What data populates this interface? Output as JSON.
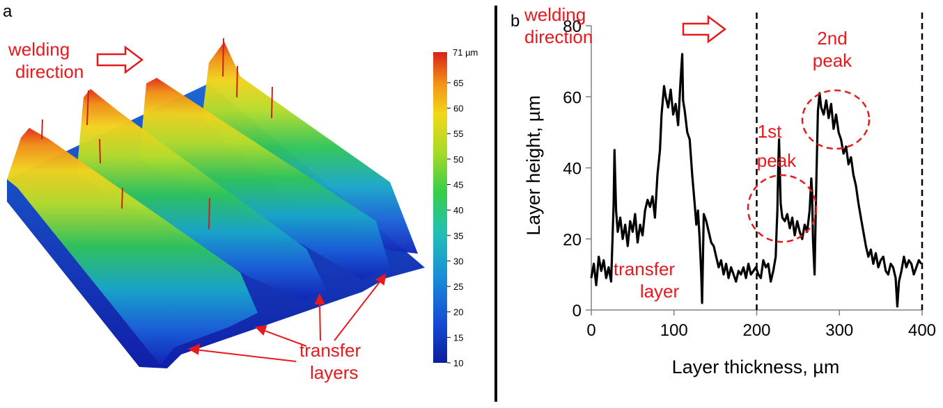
{
  "panel_a": {
    "label": "a",
    "welding_direction_lines": [
      "welding",
      "direction"
    ],
    "transfer_layers_lines": [
      "transfer",
      "layers"
    ],
    "colorbar": {
      "unit_label": "71 µm",
      "ticks": [
        "65",
        "60",
        "55",
        "50",
        "45",
        "40",
        "35",
        "30",
        "25",
        "20",
        "15",
        "10"
      ],
      "range": [
        10,
        71
      ]
    }
  },
  "chart_data": {
    "type": "line",
    "panel_label": "b",
    "title": "",
    "xlabel": "Layer thickness, µm",
    "ylabel": "Layer height, µm",
    "xlim": [
      0,
      400
    ],
    "ylim": [
      0,
      80
    ],
    "xticks": [
      0,
      100,
      200,
      300,
      400
    ],
    "yticks": [
      0,
      20,
      40,
      60,
      80
    ],
    "vlines": [
      200,
      400
    ],
    "series": [
      {
        "name": "profile",
        "x": [
          0,
          3,
          6,
          9,
          12,
          15,
          18,
          21,
          24,
          27,
          28,
          30,
          32,
          35,
          38,
          41,
          44,
          47,
          50,
          53,
          56,
          59,
          62,
          65,
          68,
          71,
          74,
          77,
          80,
          83,
          85,
          88,
          90,
          93,
          96,
          99,
          102,
          105,
          108,
          110,
          111,
          113,
          116,
          119,
          122,
          125,
          127,
          129,
          131,
          133,
          134,
          136,
          139,
          142,
          145,
          148,
          151,
          154,
          157,
          160,
          163,
          166,
          169,
          172,
          175,
          178,
          181,
          184,
          187,
          190,
          193,
          196,
          199,
          202,
          205,
          208,
          211,
          214,
          217,
          220,
          223,
          224,
          225,
          226,
          227,
          229,
          231,
          234,
          237,
          240,
          243,
          246,
          249,
          252,
          255,
          258,
          261,
          264,
          266,
          267,
          268,
          270,
          272,
          274,
          276,
          278,
          281,
          284,
          287,
          290,
          293,
          296,
          299,
          302,
          305,
          308,
          311,
          314,
          317,
          320,
          323,
          326,
          329,
          332,
          335,
          338,
          341,
          344,
          347,
          350,
          353,
          356,
          359,
          362,
          365,
          368,
          370,
          372,
          375,
          378,
          381,
          384,
          387,
          390,
          393,
          396,
          399
        ],
        "y": [
          9,
          13,
          7,
          15,
          11,
          14,
          9,
          12,
          8,
          30,
          45,
          28,
          22,
          26,
          20,
          24,
          18,
          25,
          22,
          27,
          19,
          24,
          21,
          28,
          31,
          29,
          32,
          26,
          38,
          45,
          55,
          63,
          60,
          57,
          62,
          55,
          58,
          52,
          65,
          72,
          59,
          56,
          50,
          48,
          38,
          30,
          24,
          28,
          20,
          10,
          2,
          27,
          25,
          22,
          19,
          18,
          15,
          12,
          14,
          10,
          13,
          9,
          12,
          10,
          8,
          11,
          10,
          12,
          9,
          13,
          10,
          11,
          12,
          10,
          9,
          14,
          12,
          13,
          8,
          11,
          15,
          22,
          28,
          40,
          48,
          30,
          26,
          25,
          27,
          23,
          26,
          21,
          25,
          22,
          20,
          24,
          22,
          28,
          37,
          33,
          20,
          10,
          35,
          56,
          61,
          57,
          55,
          59,
          54,
          58,
          51,
          55,
          50,
          48,
          44,
          46,
          41,
          43,
          38,
          35,
          30,
          26,
          22,
          18,
          15,
          17,
          13,
          16,
          12,
          14,
          15,
          11,
          10,
          13,
          12,
          9,
          1,
          8,
          11,
          15,
          12,
          14,
          13,
          10,
          12,
          14,
          13
        ]
      }
    ],
    "annotations": {
      "welding_direction_lines": [
        "welding",
        "direction"
      ],
      "second_peak_lines": [
        "2nd",
        "peak"
      ],
      "first_peak_lines": [
        "1st",
        "peak"
      ],
      "transfer_layer_lines": [
        "transfer",
        "layer"
      ]
    }
  },
  "colors": {
    "annotation": "#e8191c",
    "line": "#000000"
  }
}
